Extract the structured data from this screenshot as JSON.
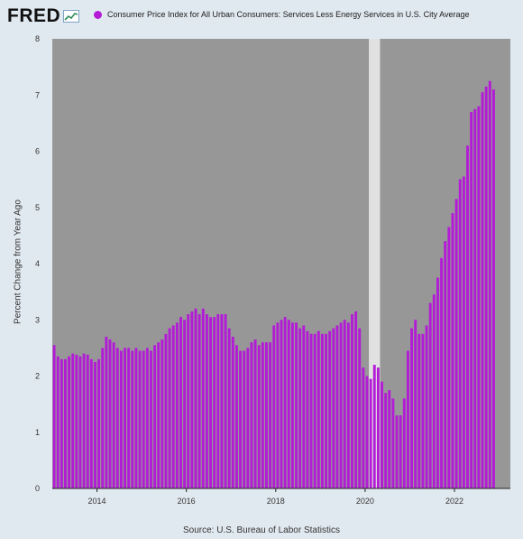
{
  "header": {
    "logo_text": "FRED",
    "legend_label": "Consumer Price Index for All Urban Consumers: Services Less Energy Services in U.S. City Average"
  },
  "footer": {
    "source": "Source: U.S. Bureau of Labor Statistics"
  },
  "colors": {
    "series": "#b31bd6",
    "plot_background": "#979797",
    "recession_shading": "#e1e1e1",
    "page_background": "#e1e9f0",
    "legend_dot": "#b31bd6"
  },
  "chart_data": {
    "type": "bar",
    "title": "",
    "xlabel": "",
    "ylabel": "Percent Change from Year Ago",
    "ylim": [
      0,
      8
    ],
    "xlim": [
      "2013-01",
      "2023-03"
    ],
    "y_ticks": [
      "0",
      "1",
      "2",
      "3",
      "4",
      "5",
      "6",
      "7",
      "8"
    ],
    "x_ticks": [
      "2014",
      "2016",
      "2018",
      "2020",
      "2022"
    ],
    "grid": false,
    "legend_position": "top",
    "recessions": [
      {
        "start": "2020-02",
        "end": "2020-04"
      }
    ],
    "series": [
      {
        "name": "Consumer Price Index for All Urban Consumers: Services Less Energy Services in U.S. City Average",
        "start": "2013-01",
        "frequency": "monthly",
        "values": [
          2.55,
          2.35,
          2.3,
          2.3,
          2.35,
          2.4,
          2.38,
          2.35,
          2.4,
          2.38,
          2.3,
          2.25,
          2.3,
          2.5,
          2.7,
          2.65,
          2.6,
          2.5,
          2.45,
          2.5,
          2.5,
          2.45,
          2.5,
          2.45,
          2.45,
          2.5,
          2.45,
          2.55,
          2.6,
          2.65,
          2.75,
          2.85,
          2.9,
          2.95,
          3.05,
          3.0,
          3.1,
          3.15,
          3.2,
          3.1,
          3.2,
          3.1,
          3.05,
          3.05,
          3.1,
          3.1,
          3.1,
          2.85,
          2.7,
          2.55,
          2.45,
          2.45,
          2.5,
          2.6,
          2.65,
          2.55,
          2.6,
          2.6,
          2.6,
          2.9,
          2.95,
          3.0,
          3.05,
          3.0,
          2.95,
          2.95,
          2.85,
          2.9,
          2.8,
          2.75,
          2.75,
          2.8,
          2.75,
          2.75,
          2.8,
          2.85,
          2.9,
          2.95,
          3.0,
          2.95,
          3.1,
          3.15,
          2.85,
          2.15,
          2.0,
          1.95,
          2.2,
          2.15,
          1.9,
          1.7,
          1.75,
          1.6,
          1.3,
          1.3,
          1.6,
          2.45,
          2.85,
          3.0,
          2.75,
          2.75,
          2.9,
          3.3,
          3.45,
          3.75,
          4.1,
          4.4,
          4.65,
          4.9,
          5.15,
          5.5,
          5.55,
          6.1,
          6.7,
          6.75,
          6.8,
          7.05,
          7.15,
          7.25,
          7.1
        ]
      }
    ]
  }
}
